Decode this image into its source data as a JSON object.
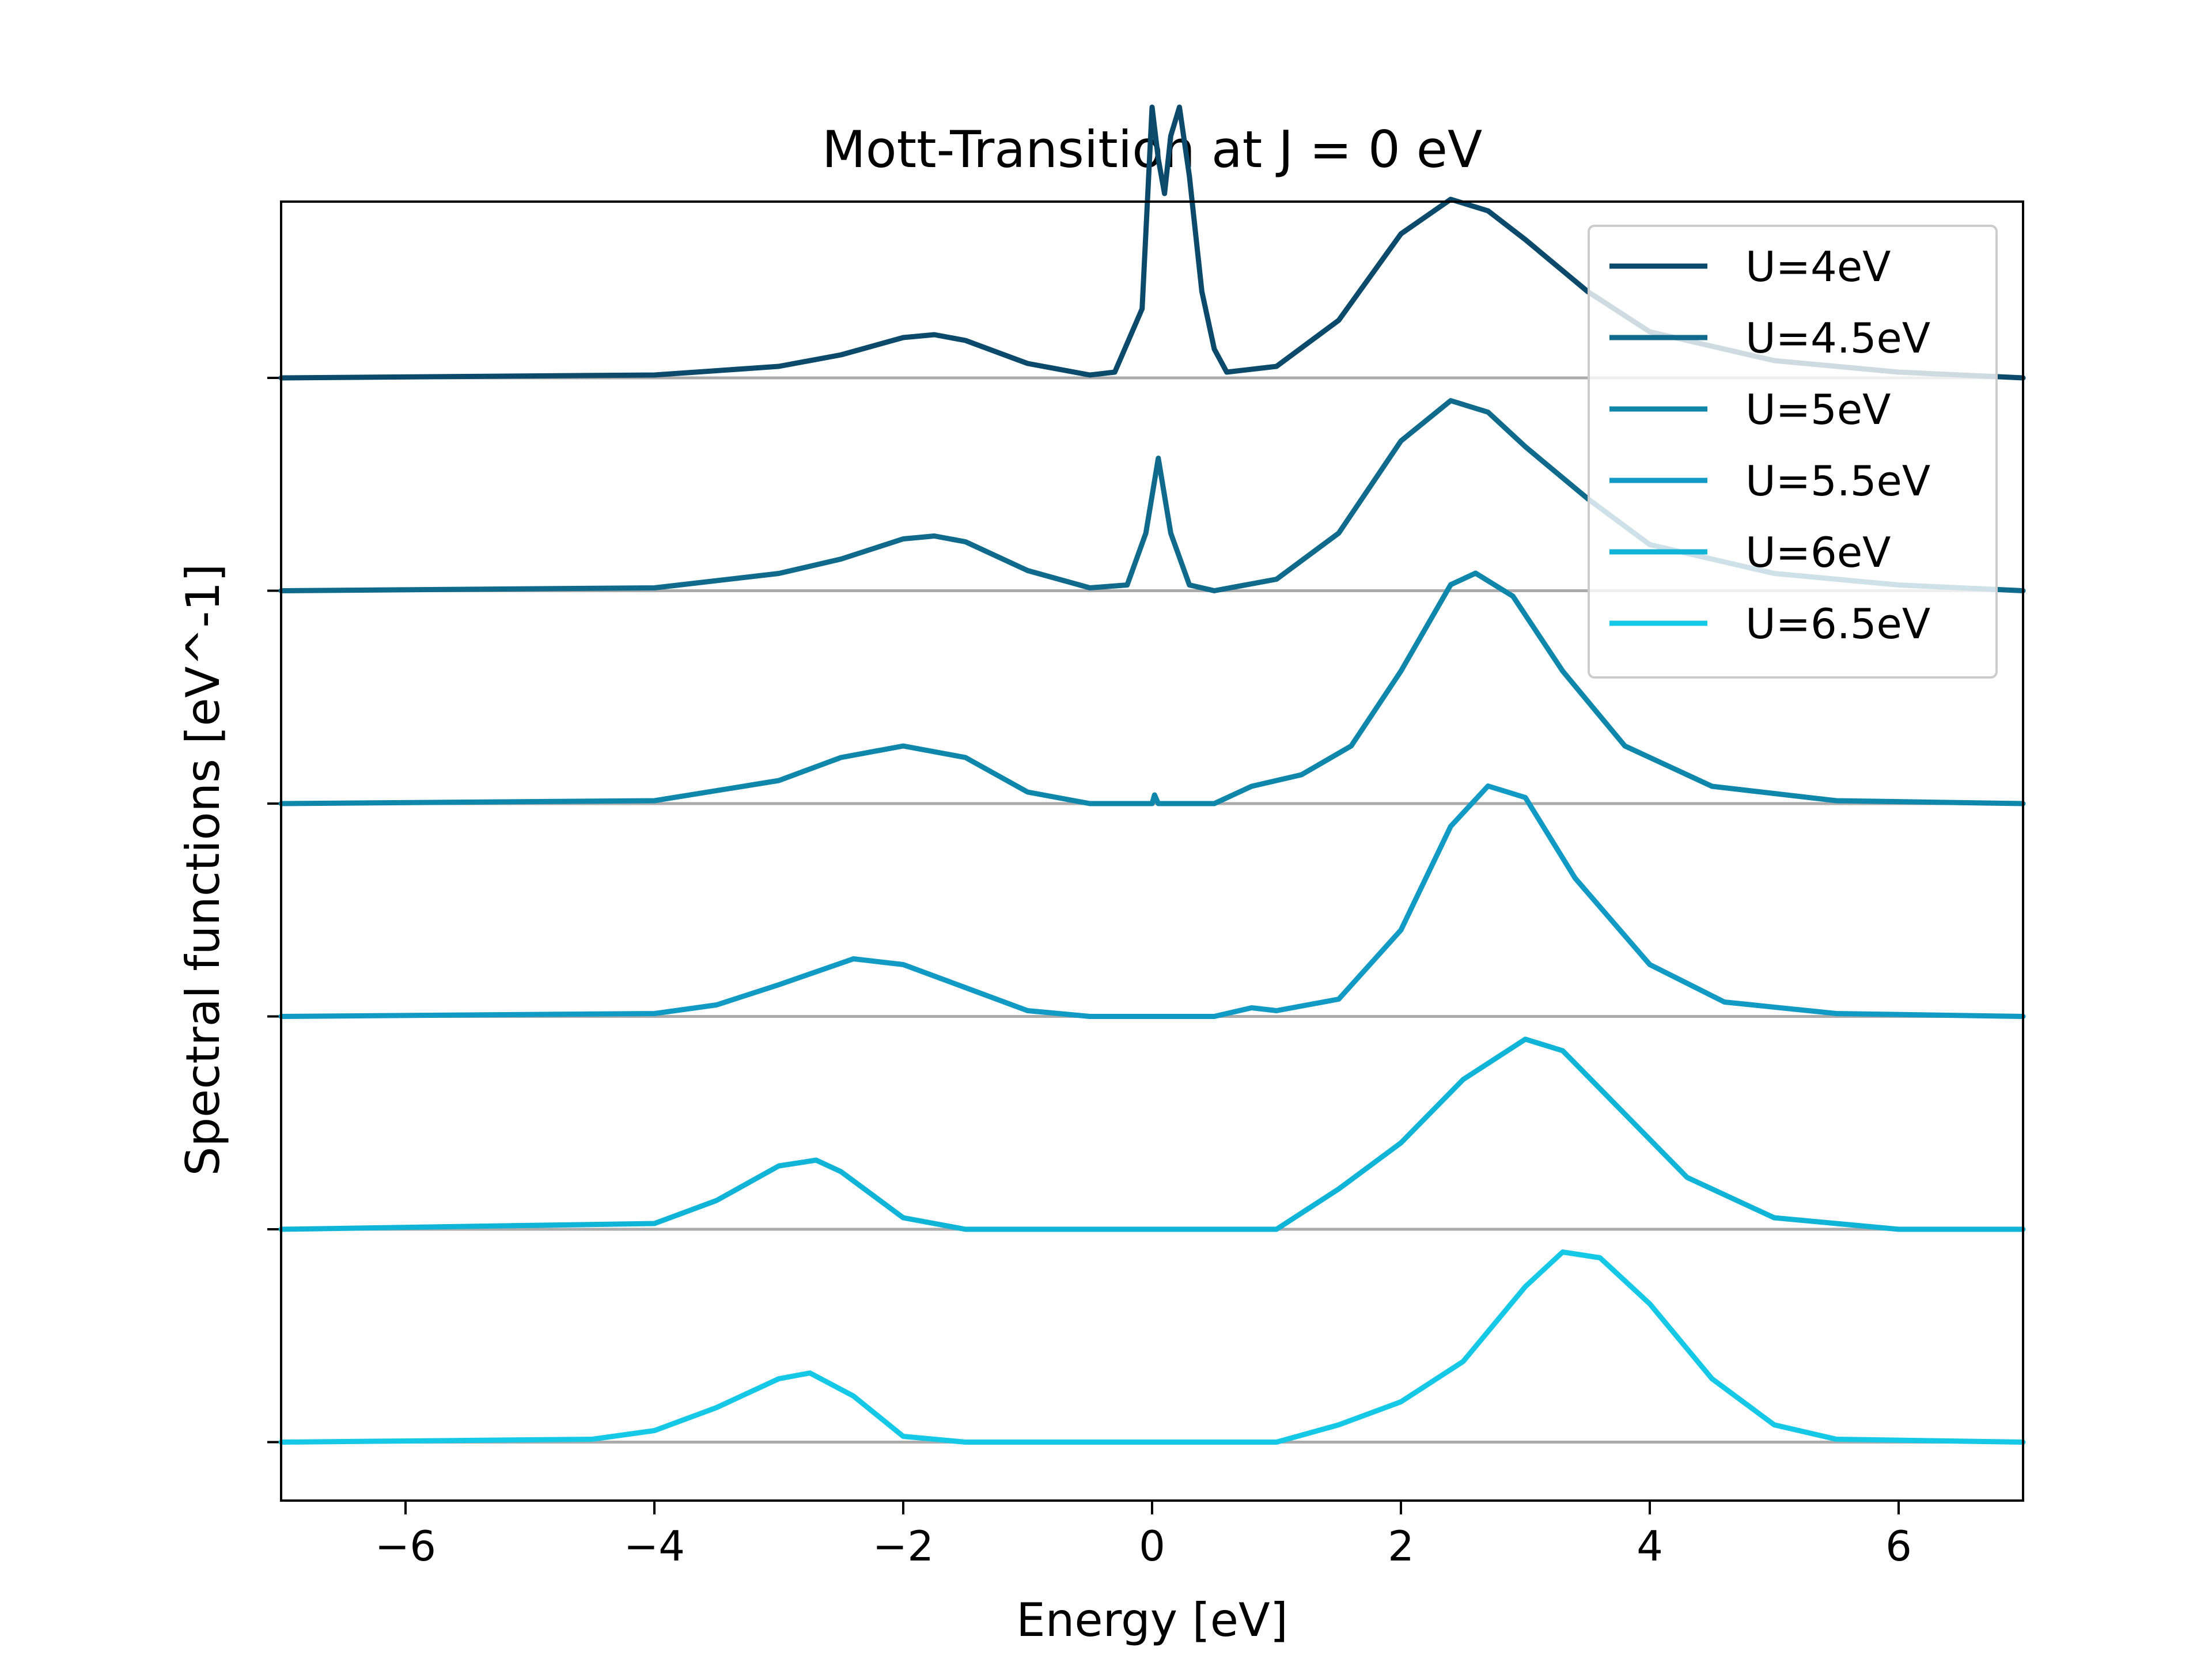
{
  "chart_data": {
    "type": "line",
    "title": "Mott-Transition at J = 0 eV",
    "xlabel": "Energy [eV]",
    "ylabel": "Spectral functions [eV^-1]",
    "xlim": [
      -7,
      7
    ],
    "xticks": [
      -6,
      -4,
      -2,
      0,
      2,
      4,
      6
    ],
    "xtick_labels": [
      "−6",
      "−4",
      "−2",
      "0",
      "2",
      "4",
      "6"
    ],
    "yticks": "one tick at each curve's baseline, no labels",
    "grid": false,
    "baselines_color": "#aaaaaa",
    "legend": {
      "placement": "top-right"
    },
    "series": [
      {
        "name": "U=4eV",
        "color": "#0b4a6b",
        "points": [
          [
            -7,
            0
          ],
          [
            -4,
            0.005
          ],
          [
            -3,
            0.02
          ],
          [
            -2.5,
            0.04
          ],
          [
            -2,
            0.07
          ],
          [
            -1.75,
            0.075
          ],
          [
            -1.5,
            0.065
          ],
          [
            -1,
            0.025
          ],
          [
            -0.5,
            0.005
          ],
          [
            -0.3,
            0.01
          ],
          [
            -0.2,
            0.06
          ],
          [
            -0.08,
            0.12
          ],
          [
            0,
            0.47
          ],
          [
            0.05,
            0.38
          ],
          [
            0.1,
            0.32
          ],
          [
            0.15,
            0.42
          ],
          [
            0.22,
            0.47
          ],
          [
            0.3,
            0.35
          ],
          [
            0.4,
            0.15
          ],
          [
            0.5,
            0.05
          ],
          [
            0.6,
            0.01
          ],
          [
            1,
            0.02
          ],
          [
            1.5,
            0.1
          ],
          [
            2,
            0.25
          ],
          [
            2.4,
            0.31
          ],
          [
            2.7,
            0.29
          ],
          [
            3,
            0.24
          ],
          [
            3.5,
            0.15
          ],
          [
            4,
            0.08
          ],
          [
            5,
            0.03
          ],
          [
            6,
            0.01
          ],
          [
            7,
            0
          ]
        ]
      },
      {
        "name": "U=4.5eV",
        "color": "#0f6a8b",
        "points": [
          [
            -7,
            0
          ],
          [
            -4,
            0.005
          ],
          [
            -3,
            0.03
          ],
          [
            -2.5,
            0.055
          ],
          [
            -2,
            0.09
          ],
          [
            -1.75,
            0.095
          ],
          [
            -1.5,
            0.085
          ],
          [
            -1,
            0.035
          ],
          [
            -0.5,
            0.005
          ],
          [
            -0.2,
            0.01
          ],
          [
            -0.05,
            0.1
          ],
          [
            0.05,
            0.23
          ],
          [
            0.15,
            0.1
          ],
          [
            0.3,
            0.01
          ],
          [
            0.5,
            0
          ],
          [
            1,
            0.02
          ],
          [
            1.5,
            0.1
          ],
          [
            2,
            0.26
          ],
          [
            2.4,
            0.33
          ],
          [
            2.7,
            0.31
          ],
          [
            3,
            0.25
          ],
          [
            3.5,
            0.16
          ],
          [
            4,
            0.08
          ],
          [
            5,
            0.03
          ],
          [
            6,
            0.01
          ],
          [
            7,
            0
          ]
        ]
      },
      {
        "name": "U=5eV",
        "color": "#0f87ab",
        "points": [
          [
            -7,
            0
          ],
          [
            -4,
            0.005
          ],
          [
            -3,
            0.04
          ],
          [
            -2.5,
            0.08
          ],
          [
            -2,
            0.1
          ],
          [
            -1.5,
            0.08
          ],
          [
            -1,
            0.02
          ],
          [
            -0.5,
            0
          ],
          [
            0,
            0
          ],
          [
            0.02,
            0.015
          ],
          [
            0.05,
            0
          ],
          [
            0.5,
            0
          ],
          [
            0.8,
            0.03
          ],
          [
            1.2,
            0.05
          ],
          [
            1.6,
            0.1
          ],
          [
            2,
            0.23
          ],
          [
            2.4,
            0.38
          ],
          [
            2.6,
            0.4
          ],
          [
            2.9,
            0.36
          ],
          [
            3.3,
            0.23
          ],
          [
            3.8,
            0.1
          ],
          [
            4.5,
            0.03
          ],
          [
            5.5,
            0.005
          ],
          [
            7,
            0
          ]
        ]
      },
      {
        "name": "U=5.5eV",
        "color": "#119ac3",
        "points": [
          [
            -7,
            0
          ],
          [
            -4,
            0.005
          ],
          [
            -3.5,
            0.02
          ],
          [
            -3,
            0.055
          ],
          [
            -2.4,
            0.1
          ],
          [
            -2,
            0.09
          ],
          [
            -1.5,
            0.05
          ],
          [
            -1,
            0.01
          ],
          [
            -0.5,
            0
          ],
          [
            0.5,
            0
          ],
          [
            0.8,
            0.015
          ],
          [
            1,
            0.01
          ],
          [
            1.5,
            0.03
          ],
          [
            2,
            0.15
          ],
          [
            2.4,
            0.33
          ],
          [
            2.7,
            0.4
          ],
          [
            3,
            0.38
          ],
          [
            3.4,
            0.24
          ],
          [
            4,
            0.09
          ],
          [
            4.6,
            0.025
          ],
          [
            5.5,
            0.005
          ],
          [
            7,
            0
          ]
        ]
      },
      {
        "name": "U=6eV",
        "color": "#0fb4d6",
        "points": [
          [
            -7,
            0
          ],
          [
            -4,
            0.01
          ],
          [
            -3.5,
            0.05
          ],
          [
            -3,
            0.11
          ],
          [
            -2.7,
            0.12
          ],
          [
            -2.5,
            0.1
          ],
          [
            -2,
            0.02
          ],
          [
            -1.5,
            0
          ],
          [
            1,
            0
          ],
          [
            1.5,
            0.07
          ],
          [
            2,
            0.15
          ],
          [
            2.5,
            0.26
          ],
          [
            3,
            0.33
          ],
          [
            3.3,
            0.31
          ],
          [
            3.8,
            0.2
          ],
          [
            4.3,
            0.09
          ],
          [
            5,
            0.02
          ],
          [
            6,
            0
          ],
          [
            7,
            0
          ]
        ]
      },
      {
        "name": "U=6.5eV",
        "color": "#14c8e6",
        "points": [
          [
            -7,
            0
          ],
          [
            -4.5,
            0.005
          ],
          [
            -4,
            0.02
          ],
          [
            -3.5,
            0.06
          ],
          [
            -3,
            0.11
          ],
          [
            -2.75,
            0.12
          ],
          [
            -2.4,
            0.08
          ],
          [
            -2,
            0.01
          ],
          [
            -1.5,
            0
          ],
          [
            1,
            0
          ],
          [
            1.5,
            0.03
          ],
          [
            2,
            0.07
          ],
          [
            2.5,
            0.14
          ],
          [
            3,
            0.27
          ],
          [
            3.3,
            0.33
          ],
          [
            3.6,
            0.32
          ],
          [
            4,
            0.24
          ],
          [
            4.5,
            0.11
          ],
          [
            5,
            0.03
          ],
          [
            5.5,
            0.005
          ],
          [
            7,
            0
          ]
        ]
      }
    ]
  }
}
